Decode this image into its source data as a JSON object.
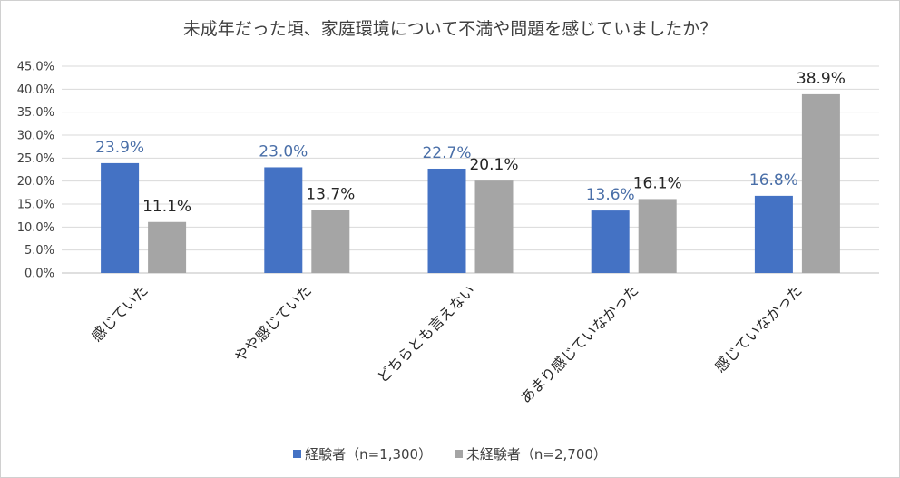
{
  "chart_data": {
    "type": "bar",
    "title": "未成年だった頃、家庭環境について不満や問題を感じていましたか？",
    "categories": [
      "感じていた",
      "やや感じていた",
      "どちらとも言えない",
      "あまり感じていなかった",
      "感じていなかった"
    ],
    "series": [
      {
        "name": "経験者（n=1,300）",
        "values": [
          23.9,
          23.0,
          22.7,
          13.6,
          16.8
        ],
        "color": "#4472c4",
        "label_color": "#4a6fa8"
      },
      {
        "name": "未経験者（n=2,700）",
        "values": [
          11.1,
          13.7,
          20.1,
          16.1,
          38.9
        ],
        "color": "#a5a5a5",
        "label_color": "#262626"
      }
    ],
    "ylim": [
      0,
      45
    ],
    "yticks": [
      "0.0%",
      "5.0%",
      "10.0%",
      "15.0%",
      "20.0%",
      "25.0%",
      "30.0%",
      "35.0%",
      "40.0%",
      "45.0%"
    ],
    "value_labels": [
      [
        "23.9%",
        "23.0%",
        "22.7%",
        "13.6%",
        "16.8%"
      ],
      [
        "11.1%",
        "13.7%",
        "20.1%",
        "16.1%",
        "38.9%"
      ]
    ],
    "grid": true,
    "legend_position": "bottom"
  }
}
